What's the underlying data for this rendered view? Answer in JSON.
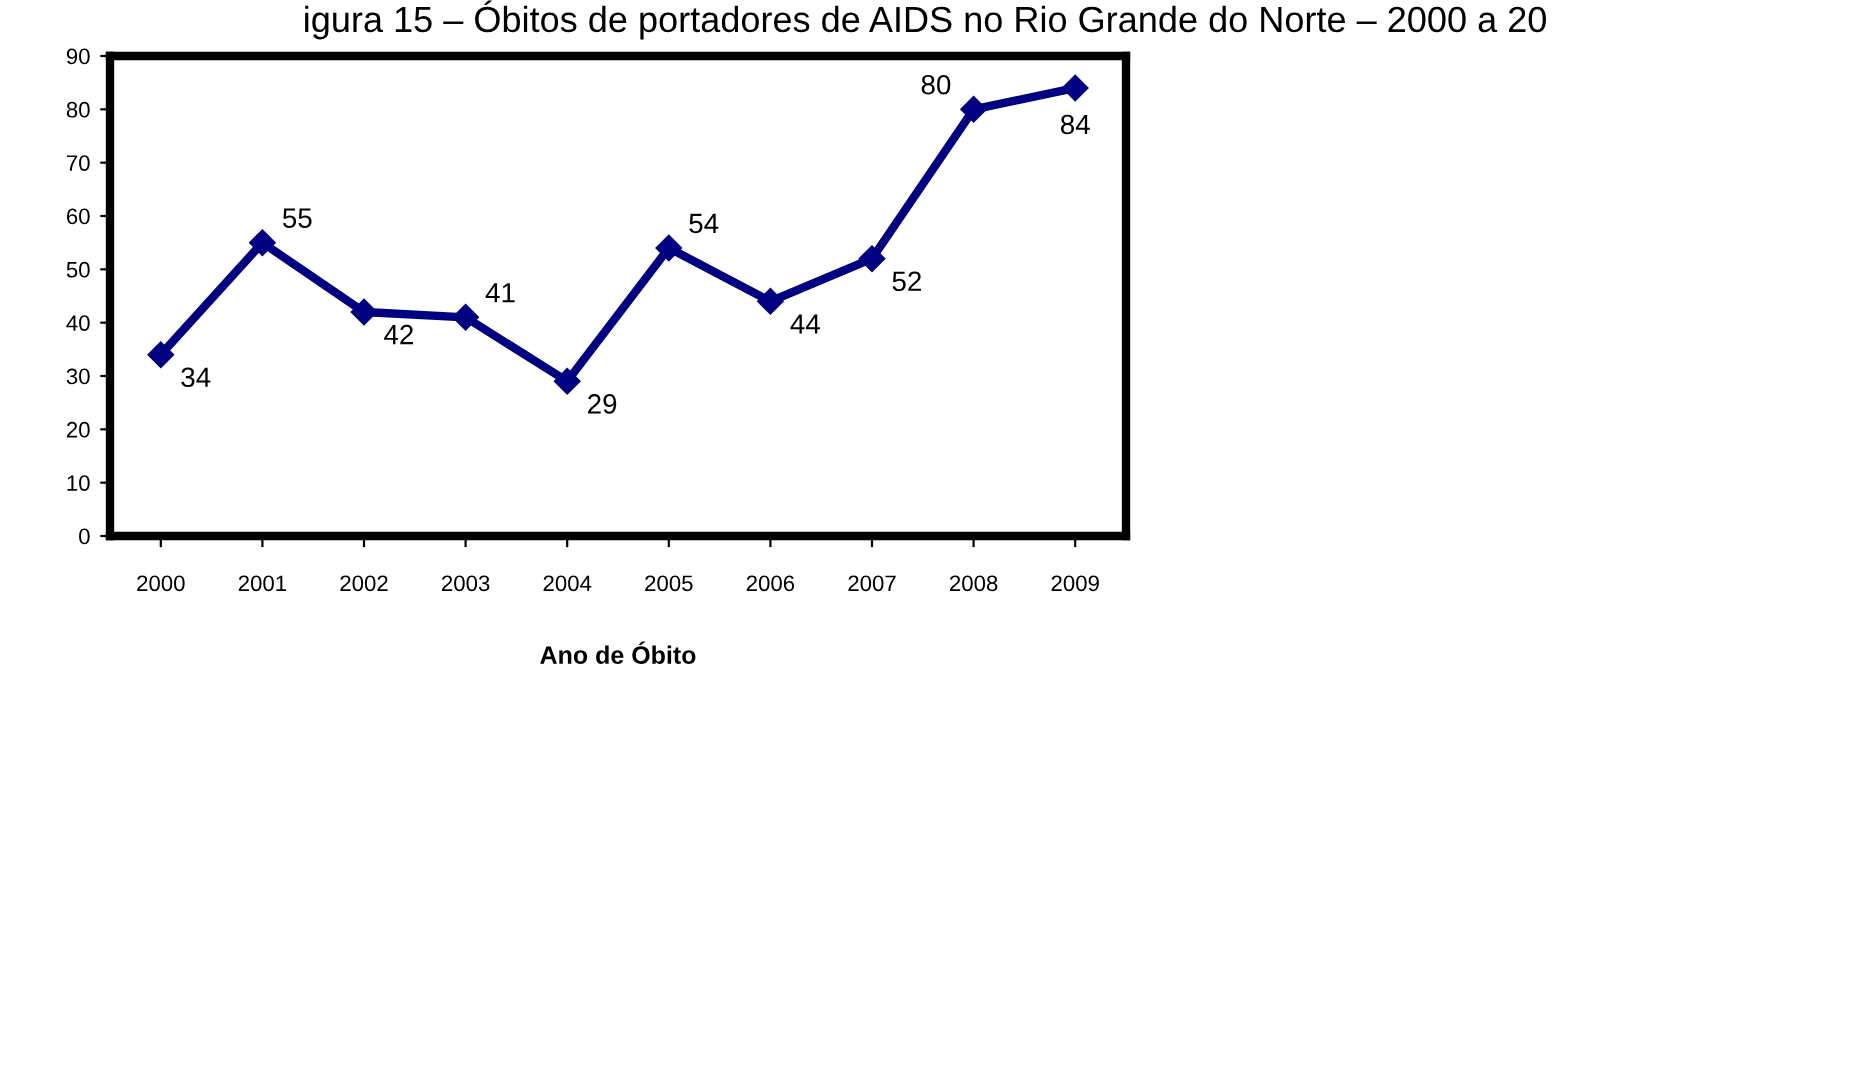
{
  "chart_data": {
    "type": "line",
    "title": "igura 15 – Óbitos de portadores de AIDS no Rio Grande do Norte – 2000 a 20",
    "xlabel": "Ano de Óbito",
    "categories": [
      "2000",
      "2001",
      "2002",
      "2003",
      "2004",
      "2005",
      "2006",
      "2007",
      "2008",
      "2009"
    ],
    "series": [
      {
        "color": "#000080",
        "values": [
          34,
          55,
          42,
          41,
          29,
          54,
          44,
          52,
          80,
          84
        ]
      }
    ],
    "ylim": [
      0,
      90
    ],
    "yticks": [
      0,
      10,
      20,
      30,
      40,
      50,
      60,
      70,
      80,
      90
    ],
    "marker": "diamond",
    "line_style": "solid",
    "data_labels": true,
    "grid": false,
    "legend": false
  }
}
